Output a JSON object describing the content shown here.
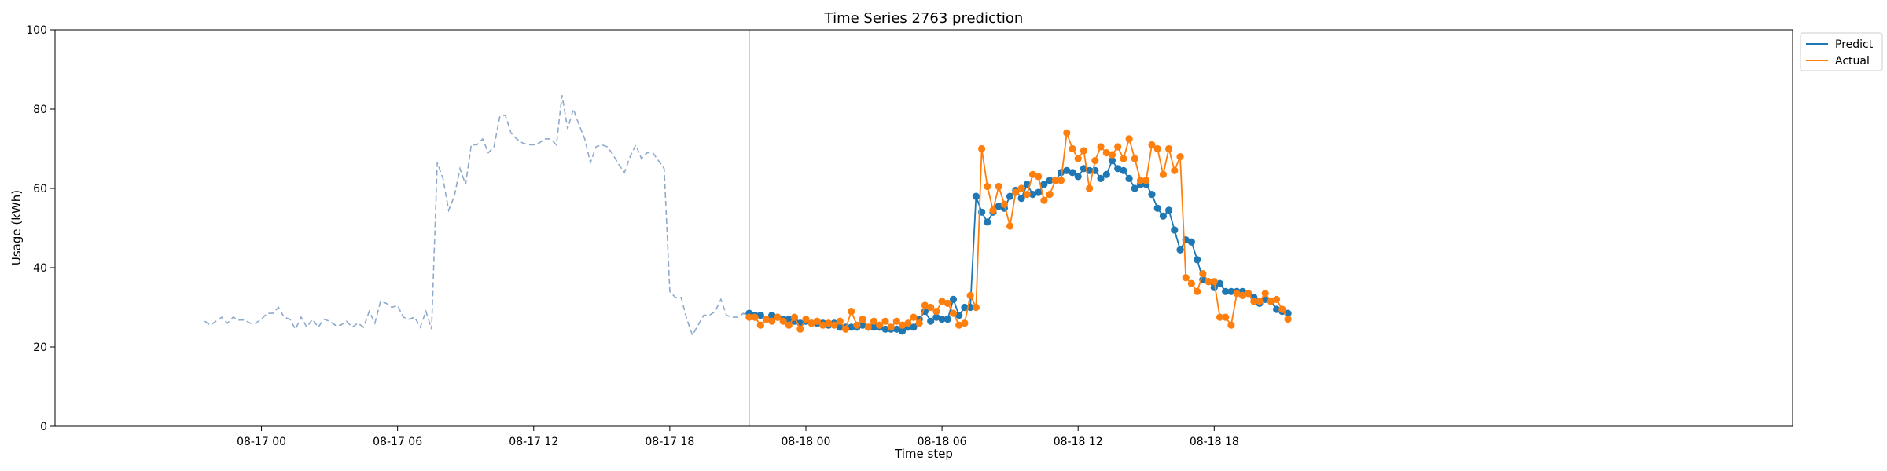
{
  "chart_data": {
    "type": "line",
    "title": "Time Series 2763 prediction",
    "xlabel": "Time step",
    "ylabel": "Usage (kWh)",
    "ylim": [
      0,
      100
    ],
    "yticks": [
      0,
      20,
      40,
      60,
      80,
      100
    ],
    "x_unit": "hours since 08-17 00:00",
    "xlim": [
      -9.1,
      67.5
    ],
    "xticks": [
      {
        "x": 0,
        "label": "08-17 00"
      },
      {
        "x": 6,
        "label": "08-17 06"
      },
      {
        "x": 12,
        "label": "08-17 12"
      },
      {
        "x": 18,
        "label": "08-17 18"
      },
      {
        "x": 24,
        "label": "08-18 00"
      },
      {
        "x": 30,
        "label": "08-18 06"
      },
      {
        "x": 36,
        "label": "08-18 12"
      },
      {
        "x": 42,
        "label": "08-18 18"
      }
    ],
    "history_start": -2.5,
    "step_hours": 0.25,
    "forecast_start": 21.5,
    "history_values": [
      26.5,
      25.5,
      26.5,
      27.5,
      26.0,
      27.5,
      26.8,
      26.8,
      26.0,
      26.0,
      27.0,
      28.5,
      28.5,
      30.0,
      27.5,
      27.0,
      24.5,
      27.5,
      25.0,
      27.0,
      25.0,
      27.0,
      26.5,
      25.5,
      25.5,
      26.5,
      25.0,
      26.0,
      25.0,
      29.0,
      26.0,
      31.5,
      31.0,
      30.0,
      30.5,
      27.5,
      27.0,
      27.5,
      25.0,
      29.0,
      24.5,
      66.5,
      62.5,
      54.5,
      58.0,
      65.0,
      61.0,
      71.0,
      71.0,
      72.5,
      69.0,
      70.5,
      78.0,
      78.5,
      74.0,
      72.5,
      71.5,
      71.0,
      71.0,
      71.5,
      72.5,
      72.5,
      71.0,
      83.5,
      75.0,
      80.0,
      76.0,
      72.5,
      66.5,
      70.5,
      71.0,
      70.5,
      68.5,
      66.0,
      64.0,
      68.0,
      71.0,
      67.5,
      69.0,
      69.0,
      67.0,
      65.0,
      34.0,
      32.5,
      32.5,
      27.0,
      23.0,
      25.5,
      28.0,
      28.0,
      29.0,
      32.0,
      28.0,
      27.5,
      27.5,
      28.5,
      27.5,
      28.0
    ],
    "series": [
      {
        "name": "Predict",
        "color": "#1f77b4",
        "values": [
          28.5,
          28.0,
          28.0,
          27.0,
          28.0,
          27.5,
          27.0,
          27.0,
          26.5,
          26.0,
          26.5,
          26.0,
          26.0,
          26.0,
          25.5,
          26.0,
          25.0,
          25.0,
          25.0,
          25.0,
          25.5,
          25.0,
          25.0,
          25.0,
          24.5,
          24.5,
          24.5,
          24.0,
          25.0,
          25.0,
          27.0,
          29.0,
          26.5,
          27.5,
          27.0,
          27.0,
          32.0,
          28.0,
          30.0,
          30.0,
          58.0,
          54.0,
          51.5,
          54.0,
          55.5,
          55.0,
          58.0,
          59.5,
          57.5,
          61.0,
          58.5,
          59.0,
          61.0,
          62.0,
          62.0,
          64.0,
          64.5,
          64.0,
          63.0,
          65.0,
          64.5,
          64.5,
          62.5,
          63.5,
          67.0,
          65.0,
          64.5,
          62.5,
          60.0,
          61.0,
          61.0,
          58.5,
          55.0,
          53.0,
          54.5,
          49.5,
          44.5,
          47.0,
          46.5,
          42.0,
          37.0,
          36.5,
          35.0,
          36.0,
          34.0,
          34.0,
          34.0,
          34.0,
          33.5,
          32.5,
          31.0,
          32.0,
          31.5,
          29.5,
          29.0,
          28.5
        ]
      },
      {
        "name": "Actual",
        "color": "#ff7f0e",
        "values": [
          27.5,
          27.5,
          25.5,
          27.0,
          26.5,
          27.5,
          26.5,
          25.5,
          27.5,
          24.5,
          27.0,
          26.0,
          26.5,
          25.5,
          26.0,
          25.5,
          26.5,
          24.5,
          29.0,
          25.5,
          27.0,
          25.0,
          26.5,
          25.5,
          26.5,
          25.0,
          26.5,
          25.5,
          26.0,
          27.5,
          26.0,
          30.5,
          30.0,
          29.0,
          31.5,
          31.0,
          28.5,
          25.5,
          26.0,
          33.0,
          30.0,
          70.0,
          60.5,
          54.5,
          60.5,
          56.0,
          50.5,
          59.0,
          60.0,
          58.5,
          63.5,
          63.0,
          57.0,
          58.5,
          62.0,
          62.0,
          74.0,
          70.0,
          67.5,
          69.5,
          60.0,
          67.0,
          70.5,
          69.0,
          68.5,
          70.5,
          67.5,
          72.5,
          67.5,
          62.0,
          62.0,
          71.0,
          70.0,
          63.5,
          70.0,
          64.5,
          68.0,
          37.5,
          36.0,
          34.0,
          38.5,
          36.5,
          36.5,
          27.5,
          27.5,
          25.5,
          33.5,
          33.0,
          33.5,
          31.5,
          31.5,
          33.5,
          31.5,
          32.0,
          29.5,
          27.0
        ]
      }
    ],
    "legend": {
      "placement": "top-right",
      "entries": [
        "Predict",
        "Actual"
      ]
    },
    "grid": false
  }
}
